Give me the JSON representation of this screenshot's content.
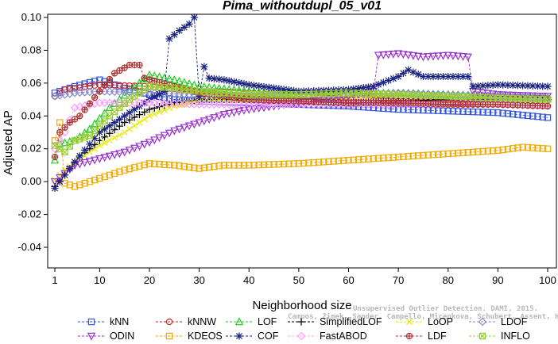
{
  "watermark": {
    "line1": "Unsupervised Outlier Detection. DAMI, 2015.",
    "line2": "Campos, Zimek, Sander, Campello, Micenkova, Schubert, Assent, Houle"
  },
  "chart_data": {
    "type": "line",
    "title": "Pima_withoutdupl_05_v01",
    "xlabel": "Neighborhood size",
    "ylabel": "Adjusted AP",
    "xlim": [
      1,
      100
    ],
    "ylim": [
      -0.05,
      0.1
    ],
    "xticks": [
      "1",
      "10",
      "20",
      "30",
      "40",
      "50",
      "60",
      "70",
      "80",
      "90",
      "100"
    ],
    "yticks": [
      "-0.04",
      "-0.02",
      "0.00",
      "0.02",
      "0.04",
      "0.06",
      "0.08",
      "0.10"
    ],
    "x": {
      "start": 1,
      "end": 100,
      "step": 1
    },
    "legend_position": "bottom",
    "series": [
      {
        "name": "kNN",
        "color": "#3355dd",
        "marker": "square",
        "anchors": [
          [
            1,
            0.054
          ],
          [
            2,
            0.055
          ],
          [
            5,
            0.058
          ],
          [
            10,
            0.062
          ],
          [
            15,
            0.057
          ],
          [
            20,
            0.053
          ],
          [
            25,
            0.05
          ],
          [
            30,
            0.049
          ],
          [
            40,
            0.048
          ],
          [
            50,
            0.047
          ],
          [
            60,
            0.046
          ],
          [
            70,
            0.044
          ],
          [
            80,
            0.043
          ],
          [
            90,
            0.042
          ],
          [
            100,
            0.039
          ]
        ]
      },
      {
        "name": "kNNW",
        "color": "#cc2222",
        "marker": "circle",
        "anchors": [
          [
            1,
            0.052
          ],
          [
            3,
            0.056
          ],
          [
            10,
            0.059
          ],
          [
            20,
            0.058
          ],
          [
            30,
            0.055
          ],
          [
            40,
            0.054
          ],
          [
            50,
            0.052
          ],
          [
            60,
            0.05
          ],
          [
            70,
            0.049
          ],
          [
            80,
            0.048
          ],
          [
            90,
            0.047
          ],
          [
            100,
            0.046
          ]
        ]
      },
      {
        "name": "LOF",
        "color": "#22cc22",
        "marker": "triangle-up",
        "anchors": [
          [
            1,
            0.013
          ],
          [
            2,
            0.023
          ],
          [
            5,
            0.025
          ],
          [
            8,
            0.032
          ],
          [
            12,
            0.045
          ],
          [
            16,
            0.055
          ],
          [
            18,
            0.06
          ],
          [
            20,
            0.065
          ],
          [
            25,
            0.062
          ],
          [
            30,
            0.058
          ],
          [
            40,
            0.055
          ],
          [
            50,
            0.053
          ],
          [
            60,
            0.054
          ],
          [
            70,
            0.054
          ],
          [
            80,
            0.053
          ],
          [
            90,
            0.052
          ],
          [
            100,
            0.051
          ]
        ]
      },
      {
        "name": "SimplifiedLOF",
        "color": "#000000",
        "marker": "plus",
        "anchors": [
          [
            1,
            -0.003
          ],
          [
            3,
            0.004
          ],
          [
            6,
            0.015
          ],
          [
            10,
            0.025
          ],
          [
            15,
            0.036
          ],
          [
            20,
            0.044
          ],
          [
            25,
            0.048
          ],
          [
            30,
            0.05
          ],
          [
            40,
            0.05
          ],
          [
            50,
            0.049
          ],
          [
            60,
            0.048
          ],
          [
            70,
            0.049
          ],
          [
            80,
            0.05
          ],
          [
            90,
            0.05
          ],
          [
            100,
            0.05
          ]
        ]
      },
      {
        "name": "LoOP",
        "color": "#e8e800",
        "marker": "x",
        "anchors": [
          [
            1,
            0.001
          ],
          [
            3,
            0.007
          ],
          [
            6,
            0.014
          ],
          [
            10,
            0.022
          ],
          [
            15,
            0.03
          ],
          [
            20,
            0.04
          ],
          [
            25,
            0.046
          ],
          [
            30,
            0.049
          ],
          [
            40,
            0.05
          ],
          [
            50,
            0.051
          ],
          [
            60,
            0.052
          ],
          [
            70,
            0.053
          ],
          [
            80,
            0.052
          ],
          [
            90,
            0.051
          ],
          [
            100,
            0.05
          ]
        ]
      },
      {
        "name": "LDOF",
        "color": "#8888cc",
        "marker": "diamond",
        "anchors": [
          [
            1,
            0.052
          ],
          [
            5,
            0.054
          ],
          [
            10,
            0.055
          ],
          [
            20,
            0.054
          ],
          [
            30,
            0.053
          ],
          [
            40,
            0.052
          ],
          [
            50,
            0.052
          ],
          [
            60,
            0.053
          ],
          [
            70,
            0.054
          ],
          [
            80,
            0.053
          ],
          [
            90,
            0.052
          ],
          [
            100,
            0.051
          ]
        ]
      },
      {
        "name": "ODIN",
        "color": "#9933cc",
        "marker": "triangle-down",
        "anchors": [
          [
            1,
            0.0
          ],
          [
            5,
            0.01
          ],
          [
            10,
            0.014
          ],
          [
            15,
            0.018
          ],
          [
            20,
            0.024
          ],
          [
            25,
            0.031
          ],
          [
            30,
            0.036
          ],
          [
            35,
            0.041
          ],
          [
            40,
            0.044
          ],
          [
            50,
            0.048
          ],
          [
            60,
            0.052
          ],
          [
            65,
            0.055
          ],
          [
            66,
            0.077
          ],
          [
            70,
            0.078
          ],
          [
            75,
            0.076
          ],
          [
            80,
            0.077
          ],
          [
            84,
            0.076
          ],
          [
            85,
            0.055
          ],
          [
            90,
            0.053
          ],
          [
            100,
            0.052
          ]
        ]
      },
      {
        "name": "KDEOS",
        "color": "#f2a900",
        "marker": "square",
        "anchors": [
          [
            1,
            0.025
          ],
          [
            2,
            0.036
          ],
          [
            3,
            -0.001
          ],
          [
            5,
            -0.003
          ],
          [
            10,
            0.002
          ],
          [
            15,
            0.007
          ],
          [
            20,
            0.011
          ],
          [
            25,
            0.01
          ],
          [
            30,
            0.008
          ],
          [
            35,
            0.01
          ],
          [
            40,
            0.01
          ],
          [
            50,
            0.011
          ],
          [
            60,
            0.013
          ],
          [
            70,
            0.015
          ],
          [
            80,
            0.017
          ],
          [
            90,
            0.019
          ],
          [
            95,
            0.021
          ],
          [
            100,
            0.02
          ]
        ]
      },
      {
        "name": "COF",
        "color": "#1a237e",
        "marker": "star",
        "anchors": [
          [
            1,
            -0.004
          ],
          [
            3,
            0.004
          ],
          [
            5,
            0.012
          ],
          [
            10,
            0.03
          ],
          [
            15,
            0.04
          ],
          [
            20,
            0.05
          ],
          [
            23,
            0.055
          ],
          [
            24,
            0.087
          ],
          [
            26,
            0.092
          ],
          [
            28,
            0.096
          ],
          [
            29,
            0.1
          ],
          [
            30,
            0.052
          ],
          [
            31,
            0.07
          ],
          [
            32,
            0.063
          ],
          [
            35,
            0.062
          ],
          [
            40,
            0.059
          ],
          [
            50,
            0.055
          ],
          [
            60,
            0.056
          ],
          [
            65,
            0.058
          ],
          [
            70,
            0.064
          ],
          [
            72,
            0.068
          ],
          [
            75,
            0.064
          ],
          [
            80,
            0.064
          ],
          [
            84,
            0.064
          ],
          [
            85,
            0.058
          ],
          [
            90,
            0.059
          ],
          [
            100,
            0.058
          ]
        ]
      },
      {
        "name": "FastABOD",
        "color": "#ff99ff",
        "marker": "diamond",
        "anchors": [
          [
            1,
            0.02
          ],
          [
            3,
            0.03
          ],
          [
            5,
            0.045
          ],
          [
            10,
            0.048
          ],
          [
            20,
            0.048
          ],
          [
            30,
            0.047
          ],
          [
            40,
            0.047
          ],
          [
            50,
            0.047
          ],
          [
            60,
            0.047
          ],
          [
            70,
            0.047
          ],
          [
            80,
            0.047
          ],
          [
            90,
            0.047
          ],
          [
            100,
            0.046
          ]
        ]
      },
      {
        "name": "LDF",
        "color": "#aa3333",
        "marker": "circle-plus",
        "anchors": [
          [
            1,
            0.015
          ],
          [
            2,
            0.03
          ],
          [
            4,
            0.036
          ],
          [
            6,
            0.04
          ],
          [
            10,
            0.055
          ],
          [
            13,
            0.066
          ],
          [
            16,
            0.071
          ],
          [
            18,
            0.071
          ],
          [
            19,
            0.063
          ],
          [
            25,
            0.058
          ],
          [
            30,
            0.054
          ],
          [
            40,
            0.05
          ],
          [
            50,
            0.049
          ],
          [
            60,
            0.048
          ],
          [
            70,
            0.048
          ],
          [
            80,
            0.047
          ],
          [
            90,
            0.047
          ],
          [
            100,
            0.046
          ]
        ]
      },
      {
        "name": "INFLO",
        "color": "#99cc33",
        "marker": "x-square",
        "anchors": [
          [
            1,
            0.022
          ],
          [
            3,
            0.018
          ],
          [
            5,
            0.025
          ],
          [
            8,
            0.028
          ],
          [
            12,
            0.04
          ],
          [
            16,
            0.05
          ],
          [
            20,
            0.058
          ],
          [
            25,
            0.057
          ],
          [
            30,
            0.055
          ],
          [
            40,
            0.053
          ],
          [
            50,
            0.053
          ],
          [
            60,
            0.054
          ],
          [
            70,
            0.053
          ],
          [
            80,
            0.052
          ],
          [
            90,
            0.051
          ],
          [
            100,
            0.05
          ]
        ]
      }
    ]
  }
}
